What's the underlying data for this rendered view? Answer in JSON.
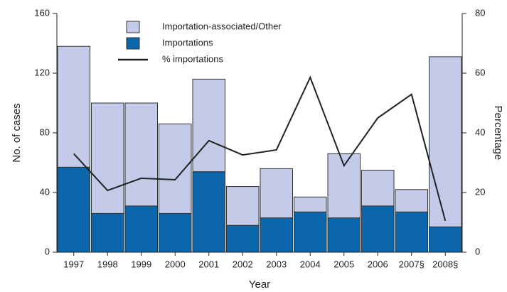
{
  "chart_data": {
    "type": "bar",
    "xlabel": "Year",
    "ylabel": "No. of cases",
    "y2label": "Percentage",
    "categories": [
      "1997",
      "1998",
      "1999",
      "2000",
      "2001",
      "2002",
      "2003",
      "2004",
      "2005",
      "2006",
      "2007§",
      "2008§"
    ],
    "series": [
      {
        "name": "Importations",
        "color": "#0b66ab",
        "values": [
          57,
          26,
          31,
          26,
          54,
          18,
          23,
          27,
          23,
          31,
          27,
          17
        ]
      },
      {
        "name": "Importation-associated/Other",
        "color": "#c4cbe8",
        "values": [
          81,
          74,
          69,
          60,
          62,
          26,
          33,
          10,
          43,
          24,
          15,
          114
        ]
      },
      {
        "name": "% importations",
        "type": "line",
        "axis": "y2",
        "color": "#222222",
        "values": [
          33,
          20.7,
          24.8,
          24.3,
          37.4,
          32.6,
          34.3,
          58.6,
          29,
          45,
          52.9,
          10.5
        ]
      }
    ],
    "legend_order": [
      1,
      0,
      2
    ],
    "ylim": [
      0,
      160
    ],
    "yticks": [
      0,
      40,
      80,
      120,
      160
    ],
    "y2lim": [
      0,
      80
    ],
    "y2ticks": [
      0,
      20,
      40,
      60,
      80
    ]
  }
}
